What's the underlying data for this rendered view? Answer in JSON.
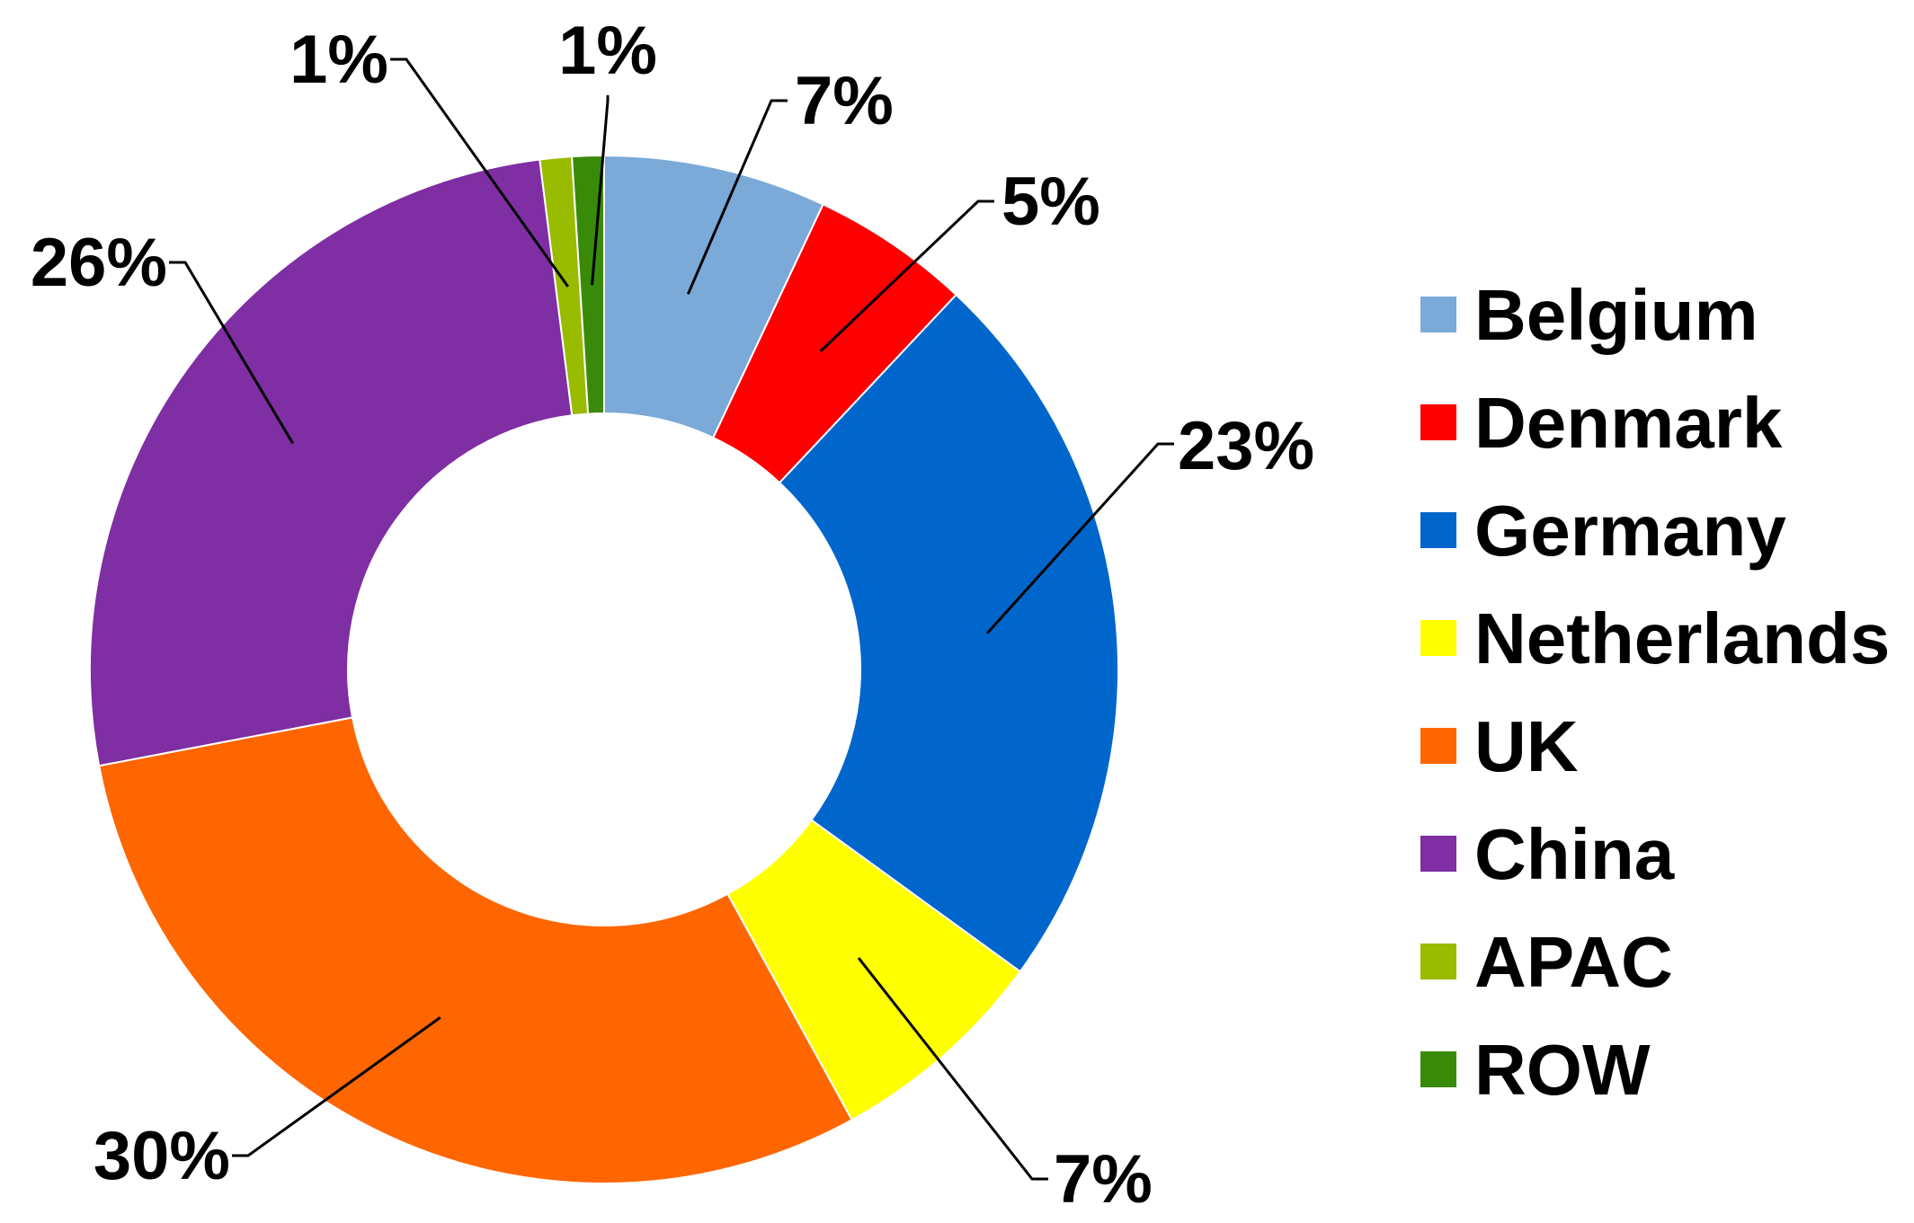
{
  "chart_data": {
    "type": "donut",
    "title": "",
    "legend_position": "right",
    "series": [
      {
        "category": "Belgium",
        "value": 7,
        "label": "7%",
        "color": "#7BA9D8"
      },
      {
        "category": "Denmark",
        "value": 5,
        "label": "5%",
        "color": "#FF0000"
      },
      {
        "category": "Germany",
        "value": 23,
        "label": "23%",
        "color": "#0066CC"
      },
      {
        "category": "Netherlands",
        "value": 7,
        "label": "7%",
        "color": "#FFFF00"
      },
      {
        "category": "UK",
        "value": 30,
        "label": "30%",
        "color": "#FF6600"
      },
      {
        "category": "China",
        "value": 26,
        "label": "26%",
        "color": "#7F2EA3"
      },
      {
        "category": "APAC",
        "value": 1,
        "label": "1%",
        "color": "#99BB00"
      },
      {
        "category": "ROW",
        "value": 1,
        "label": "1%",
        "color": "#3A8A0A"
      }
    ]
  }
}
